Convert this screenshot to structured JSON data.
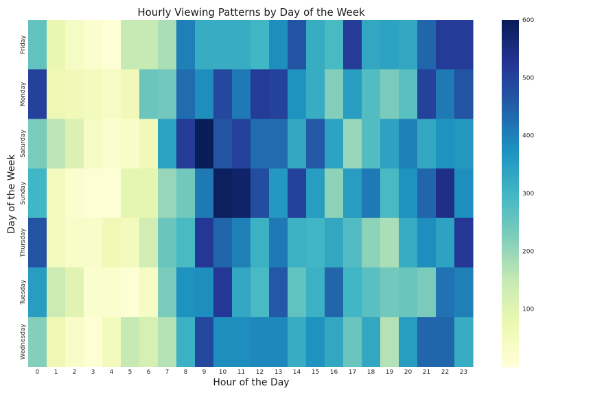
{
  "chart_data": {
    "type": "heatmap",
    "title": "Hourly Viewing Patterns by Day of the Week",
    "xlabel": "Hour of the Day",
    "ylabel": "Day of the Week",
    "x_categories": [
      "0",
      "1",
      "2",
      "3",
      "4",
      "5",
      "6",
      "7",
      "8",
      "9",
      "10",
      "11",
      "12",
      "13",
      "14",
      "15",
      "16",
      "17",
      "18",
      "19",
      "20",
      "21",
      "22",
      "23"
    ],
    "y_categories": [
      "Friday",
      "Monday",
      "Saturday",
      "Sunday",
      "Thursday",
      "Tuesday",
      "Wednesday"
    ],
    "values": [
      [
        260,
        80,
        40,
        20,
        10,
        150,
        150,
        180,
        400,
        320,
        320,
        320,
        300,
        380,
        470,
        320,
        290,
        510,
        330,
        340,
        330,
        440,
        510,
        510
      ],
      [
        500,
        70,
        60,
        50,
        40,
        60,
        250,
        240,
        430,
        380,
        490,
        410,
        510,
        500,
        370,
        320,
        220,
        350,
        280,
        230,
        270,
        500,
        410,
        470
      ],
      [
        230,
        160,
        110,
        40,
        20,
        30,
        60,
        340,
        510,
        600,
        470,
        500,
        430,
        430,
        330,
        460,
        340,
        200,
        280,
        340,
        400,
        330,
        370,
        360
      ],
      [
        300,
        50,
        20,
        10,
        10,
        90,
        90,
        200,
        240,
        410,
        590,
        580,
        480,
        360,
        500,
        350,
        210,
        350,
        410,
        290,
        370,
        440,
        540,
        380
      ],
      [
        470,
        50,
        30,
        30,
        60,
        50,
        130,
        250,
        290,
        520,
        440,
        400,
        310,
        410,
        310,
        300,
        330,
        280,
        210,
        180,
        320,
        380,
        340,
        520
      ],
      [
        350,
        140,
        100,
        20,
        20,
        10,
        40,
        230,
        370,
        380,
        520,
        330,
        290,
        460,
        260,
        310,
        440,
        300,
        270,
        240,
        250,
        230,
        420,
        400
      ],
      [
        220,
        70,
        30,
        10,
        50,
        150,
        120,
        170,
        310,
        490,
        380,
        380,
        390,
        390,
        320,
        370,
        330,
        250,
        330,
        170,
        350,
        440,
        440,
        320
      ]
    ],
    "colorbar": {
      "ticks": [
        "100",
        "200",
        "300",
        "400",
        "500",
        "600"
      ],
      "range": [
        0,
        600
      ],
      "colormap": "YlGnBu"
    },
    "grid": false
  }
}
